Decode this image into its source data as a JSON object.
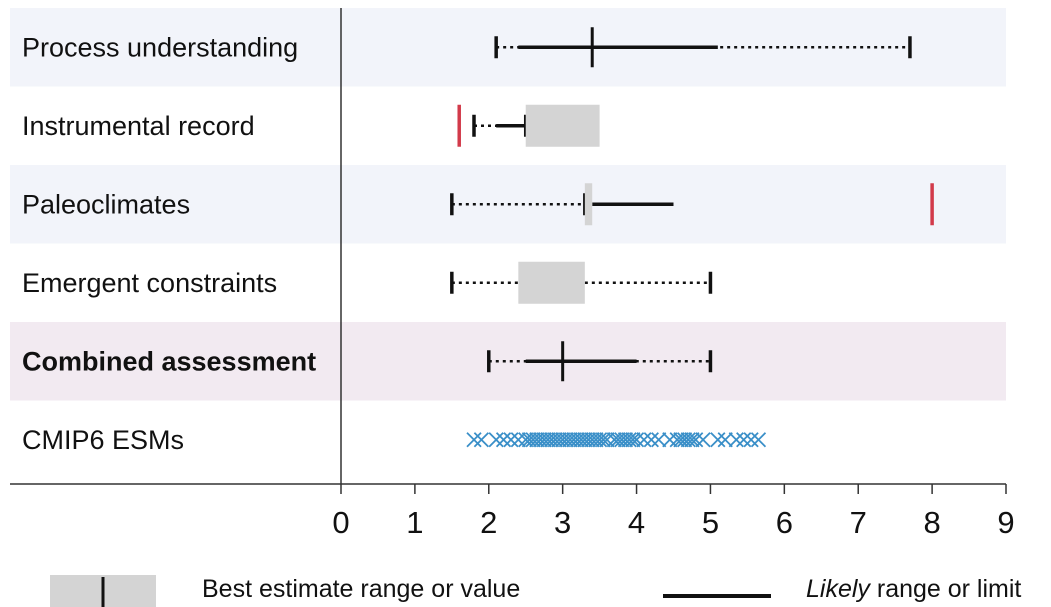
{
  "chart_data": {
    "type": "range",
    "xlim": [
      0,
      9
    ],
    "ticks": [
      "0",
      "1",
      "2",
      "3",
      "4",
      "5",
      "6",
      "7",
      "8",
      "9"
    ],
    "grid": false,
    "colors": {
      "best_estimate_fill": "#d4d4d4",
      "limit_marker": "#d23a4a",
      "esm_marker": "#3a8fc8",
      "row_band_blue": "#f2f4fa",
      "row_band_purple": "#f2eaf1"
    },
    "rows": [
      {
        "label": "Process understanding",
        "bold": false,
        "band": "blue",
        "very_likely": [
          2.1,
          7.7
        ],
        "likely": [
          2.4,
          5.1
        ],
        "best": [
          3.4,
          3.4
        ]
      },
      {
        "label": "Instrumental record",
        "bold": false,
        "band": null,
        "very_likely": [
          1.8,
          2.5
        ],
        "likely": [
          2.1,
          2.5
        ],
        "best": [
          2.5,
          3.5
        ],
        "limit_markers": [
          1.6
        ]
      },
      {
        "label": "Paleoclimates",
        "bold": false,
        "band": "blue",
        "very_likely": [
          1.5,
          3.3
        ],
        "likely": [
          3.4,
          4.5
        ],
        "best": [
          3.3,
          3.4
        ],
        "limit_markers": [
          8.0
        ]
      },
      {
        "label": "Emergent constraints",
        "bold": false,
        "band": null,
        "very_likely": [
          1.5,
          5.0
        ],
        "likely": null,
        "best": [
          2.4,
          3.3
        ]
      },
      {
        "label": "Combined assessment",
        "bold": true,
        "band": "purple",
        "very_likely": [
          2.0,
          5.0
        ],
        "likely": [
          2.5,
          4.0
        ],
        "best": [
          3.0,
          3.0
        ]
      },
      {
        "label": "CMIP6 ESMs",
        "bold": false,
        "band": null,
        "points": [
          1.8,
          1.9,
          2.1,
          2.2,
          2.3,
          2.4,
          2.5,
          2.55,
          2.6,
          2.65,
          2.7,
          2.75,
          2.8,
          2.85,
          2.9,
          2.95,
          3.0,
          3.05,
          3.1,
          3.15,
          3.2,
          3.25,
          3.3,
          3.35,
          3.4,
          3.45,
          3.5,
          3.55,
          3.6,
          3.7,
          3.75,
          3.8,
          3.85,
          3.9,
          3.95,
          4.0,
          4.1,
          4.2,
          4.3,
          4.45,
          4.55,
          4.6,
          4.65,
          4.7,
          4.75,
          4.8,
          4.9,
          5.1,
          5.2,
          5.35,
          5.45,
          5.55,
          5.65
        ]
      }
    ],
    "legend": {
      "best_label": "Best estimate range or value",
      "likely_label_italic": "Likely",
      "likely_label_rest": " range or limit"
    }
  }
}
